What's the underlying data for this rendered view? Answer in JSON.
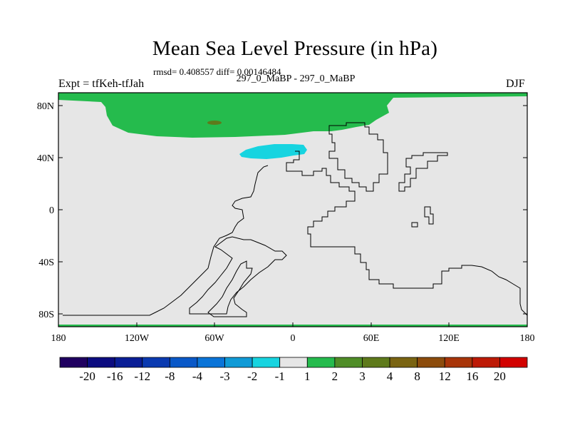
{
  "title": "Mean Sea Level Pressure (in hPa)",
  "stats": "rmsd= 0.408557 diff= 0.00146484",
  "left_label": "Expt = tfKeh-tfJah",
  "center_label": "297_0_MaBP - 297_0_MaBP",
  "right_label": "DJF",
  "map": {
    "lon_ticks": [
      "180",
      "120W",
      "60W",
      "0",
      "60E",
      "120E",
      "180"
    ],
    "lat_ticks": [
      "80N",
      "40N",
      "0",
      "40S",
      "80S"
    ],
    "background_color": "#e6e6e6",
    "positive_anomaly_color": "#25bb4d",
    "negative_anomaly_color": "#17d4e0",
    "small_patch_color": "#5e7a1b"
  },
  "colorbar": {
    "colors": [
      "#200060",
      "#0c0c80",
      "#0a1e96",
      "#0a3ab0",
      "#0958c8",
      "#0a74d8",
      "#109ad6",
      "#17d4e0",
      "#e6e6e6",
      "#25bb4d",
      "#4f8d27",
      "#5e7a1b",
      "#7a6412",
      "#8c4c0c",
      "#a83509",
      "#bd1a06",
      "#d20100"
    ],
    "labels": [
      "-20",
      "-16",
      "-12",
      "-8",
      "-4",
      "-3",
      "-2",
      "-1",
      "1",
      "2",
      "3",
      "4",
      "8",
      "12",
      "16",
      "20"
    ]
  }
}
